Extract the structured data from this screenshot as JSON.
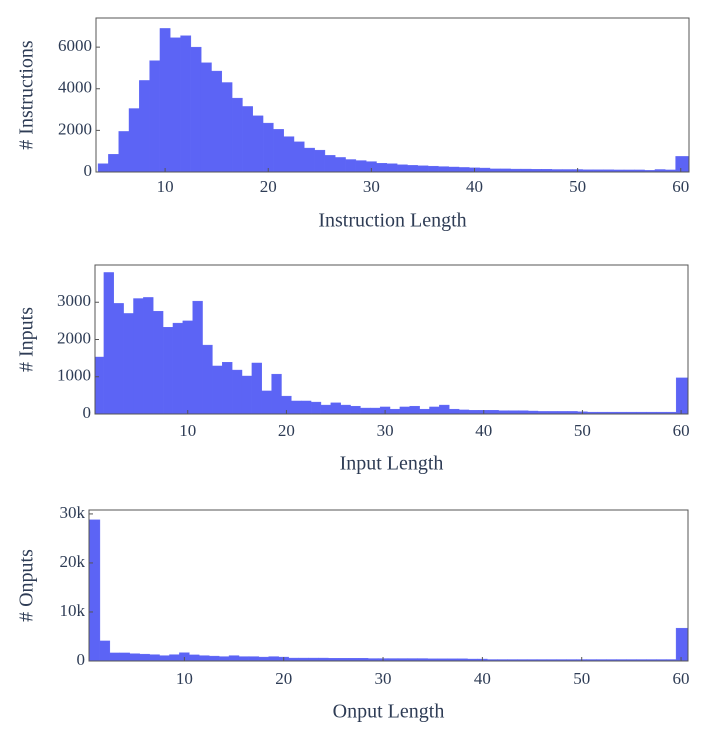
{
  "chart_data": [
    {
      "type": "histogram",
      "x_label": "Instruction Length",
      "y_label": "# Instructions",
      "color": "#5c64f5",
      "xlim": [
        3.3,
        60.8
      ],
      "ylim": [
        0,
        7400
      ],
      "xticks": [
        10,
        20,
        30,
        40,
        50,
        60
      ],
      "yticks": [
        0,
        2000,
        4000,
        6000
      ],
      "bins": [
        3.5,
        4.5,
        5.5,
        6.5,
        7.5,
        8.5,
        9.5,
        10.5,
        11.5,
        12.5,
        13.5,
        14.5,
        15.5,
        16.5,
        17.5,
        18.5,
        19.5,
        20.5,
        21.5,
        22.5,
        23.5,
        24.5,
        25.5,
        26.5,
        27.5,
        28.5,
        29.5,
        30.5,
        31.5,
        32.5,
        33.5,
        34.5,
        35.5,
        36.5,
        37.5,
        38.5,
        39.5,
        40.5,
        41.5,
        42.5,
        43.5,
        44.5,
        45.5,
        46.5,
        47.5,
        48.5,
        49.5,
        50.5,
        51.5,
        52.5,
        53.5,
        54.5,
        55.5,
        56.5,
        57.5,
        58.5,
        59.5,
        60.8
      ],
      "counts": [
        400,
        850,
        1950,
        3050,
        4400,
        5350,
        6900,
        6450,
        6550,
        6000,
        5250,
        4850,
        4300,
        3550,
        3150,
        2700,
        2350,
        2050,
        1700,
        1450,
        1150,
        1050,
        800,
        700,
        600,
        550,
        500,
        420,
        400,
        350,
        320,
        300,
        280,
        260,
        240,
        220,
        200,
        190,
        150,
        150,
        140,
        140,
        130,
        130,
        120,
        120,
        120,
        110,
        110,
        110,
        100,
        100,
        100,
        80,
        120,
        100,
        750
      ]
    },
    {
      "type": "histogram",
      "x_label": "Input Length",
      "y_label": "# Inputs",
      "color": "#5c64f5",
      "xlim": [
        0.6,
        60.7
      ],
      "ylim": [
        0,
        4000
      ],
      "xticks": [
        10,
        20,
        30,
        40,
        50,
        60
      ],
      "yticks": [
        0,
        1000,
        2000,
        3000
      ],
      "bins": [
        0.6,
        1.5,
        2.5,
        3.5,
        4.5,
        5.5,
        6.5,
        7.5,
        8.5,
        9.5,
        10.5,
        11.5,
        12.5,
        13.5,
        14.5,
        15.5,
        16.5,
        17.5,
        18.5,
        19.5,
        20.5,
        21.5,
        22.5,
        23.5,
        24.5,
        25.5,
        26.5,
        27.5,
        28.5,
        29.5,
        30.5,
        31.5,
        32.5,
        33.5,
        34.5,
        35.5,
        36.5,
        37.5,
        38.5,
        39.5,
        40.5,
        41.5,
        42.5,
        43.5,
        44.5,
        45.5,
        46.5,
        47.5,
        48.5,
        49.5,
        50.5,
        51.5,
        52.5,
        53.5,
        54.5,
        55.5,
        56.5,
        57.5,
        58.5,
        59.5,
        60.7
      ],
      "counts": [
        1530,
        3800,
        2970,
        2700,
        3100,
        3130,
        2760,
        2330,
        2440,
        2500,
        3030,
        1850,
        1290,
        1390,
        1180,
        1020,
        1370,
        620,
        1070,
        480,
        350,
        350,
        320,
        240,
        300,
        240,
        210,
        160,
        160,
        190,
        130,
        190,
        210,
        130,
        190,
        240,
        130,
        110,
        100,
        100,
        100,
        90,
        90,
        90,
        80,
        70,
        70,
        70,
        70,
        60,
        50,
        50,
        50,
        50,
        50,
        50,
        50,
        50,
        50,
        970
      ]
    },
    {
      "type": "histogram",
      "x_label": "Onput Length",
      "y_label": "# Onputs",
      "color": "#5c64f5",
      "xlim": [
        0.4,
        60.7
      ],
      "ylim": [
        0,
        30800
      ],
      "xticks": [
        10,
        20,
        30,
        40,
        50,
        60
      ],
      "yticks": [
        0,
        {
          "value": 10000,
          "label": "10k"
        },
        {
          "value": 20000,
          "label": "20k"
        },
        {
          "value": 30000,
          "label": "30k"
        }
      ],
      "bins": [
        0.4,
        1.5,
        2.5,
        3.5,
        4.5,
        5.5,
        6.5,
        7.5,
        8.5,
        9.5,
        10.5,
        11.5,
        12.5,
        13.5,
        14.5,
        15.5,
        16.5,
        17.5,
        18.5,
        19.5,
        20.5,
        21.5,
        22.5,
        23.5,
        24.5,
        25.5,
        26.5,
        27.5,
        28.5,
        29.5,
        30.5,
        31.5,
        32.5,
        33.5,
        34.5,
        35.5,
        36.5,
        37.5,
        38.5,
        39.5,
        40.5,
        41.5,
        42.5,
        43.5,
        44.5,
        45.5,
        46.5,
        47.5,
        48.5,
        49.5,
        50.5,
        51.5,
        52.5,
        53.5,
        54.5,
        55.5,
        56.5,
        57.5,
        58.5,
        59.5,
        60.7
      ],
      "counts": [
        28800,
        4100,
        1650,
        1650,
        1500,
        1400,
        1300,
        1100,
        1300,
        1700,
        1250,
        1100,
        1000,
        900,
        1100,
        900,
        900,
        800,
        900,
        800,
        600,
        600,
        600,
        600,
        550,
        550,
        550,
        550,
        500,
        500,
        500,
        500,
        500,
        500,
        450,
        450,
        450,
        450,
        400,
        400,
        300,
        300,
        300,
        300,
        300,
        300,
        300,
        300,
        300,
        300,
        300,
        300,
        300,
        300,
        300,
        300,
        300,
        300,
        300,
        6700
      ]
    }
  ]
}
